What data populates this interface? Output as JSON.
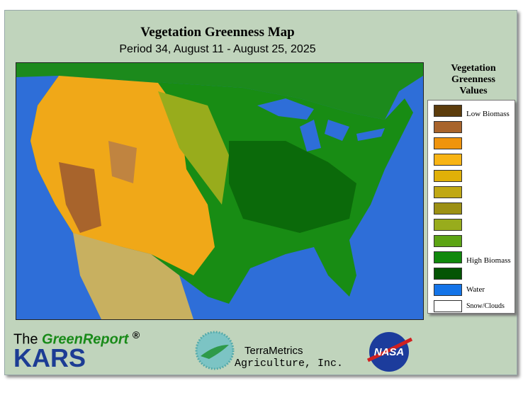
{
  "header": {
    "title": "Vegetation Greenness Map",
    "subtitle": "Period 34, August 11 - August 25, 2025"
  },
  "legend": {
    "title_lines": [
      "Vegetation",
      "Greenness",
      "Values"
    ],
    "items": [
      {
        "color": "#5c3c0c",
        "label": "Low Biomass"
      },
      {
        "color": "#a8642c"
      },
      {
        "color": "#f0940c"
      },
      {
        "color": "#f8b414"
      },
      {
        "color": "#e0b008"
      },
      {
        "color": "#c0a814"
      },
      {
        "color": "#9c9014"
      },
      {
        "color": "#98ac1c"
      },
      {
        "color": "#5ca414"
      },
      {
        "color": "#10880c",
        "label": "High Biomass"
      },
      {
        "color": "#045404"
      },
      {
        "color": "#1474e8",
        "label": "Water"
      },
      {
        "color": "#ffffff",
        "label": "Snow/Clouds"
      }
    ]
  },
  "footer": {
    "the": "The",
    "brand": "GreenReport",
    "reg": "®",
    "kars": "KARS",
    "partner_line1": "TerraMetrics",
    "partner_line2": "Agriculture, Inc.",
    "nasa": "NASA"
  }
}
